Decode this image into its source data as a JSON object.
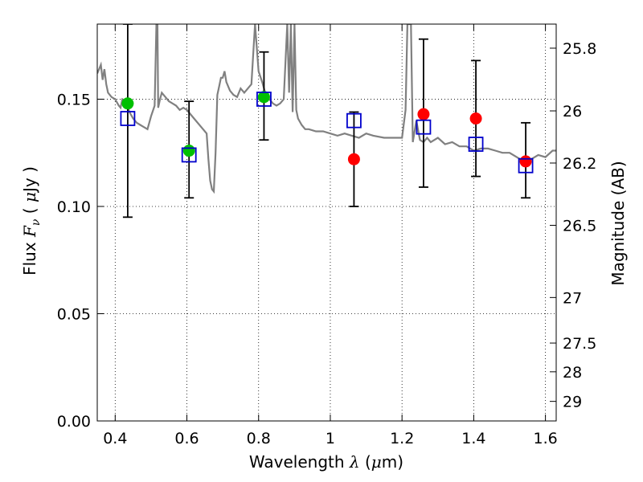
{
  "chart_data": {
    "type": "scatter",
    "xlabel_prefix": "Wavelength",
    "xlabel_symbol": "λ",
    "xlabel_unit_open": "(",
    "xlabel_unit_mu": "μ",
    "xlabel_unit_rest": "m)",
    "ylabel_prefix": "Flux",
    "ylabel_symbol": "F",
    "ylabel_subscript": "ν",
    "ylabel_unit_open": "(",
    "ylabel_unit_mu": "μ",
    "ylabel_unit_rest": "Jy )",
    "y2label": "Magnitude (AB)",
    "xlim": [
      0.35,
      1.63
    ],
    "ylim": [
      0.0,
      0.185
    ],
    "grid": true,
    "x_ticks": [
      0.4,
      0.6,
      0.8,
      1.0,
      1.2,
      1.4,
      1.6
    ],
    "x_tick_labels": [
      "0.4",
      "0.6",
      "0.8",
      "1",
      "1.2",
      "1.4",
      "1.6"
    ],
    "y_ticks": [
      0.0,
      0.05,
      0.1,
      0.15
    ],
    "y_tick_labels": [
      "0.00",
      "0.05",
      "0.10",
      "0.15"
    ],
    "mag_ticks": [
      25.8,
      26,
      26.2,
      26.5,
      27,
      27.5,
      28,
      29
    ],
    "mag_tick_labels": [
      "25.8",
      "26",
      "26.2",
      "26.5",
      "27",
      "27.5",
      "28",
      "29"
    ],
    "colors": {
      "spectrum": "#808080",
      "observed_green": "#00c000",
      "observed_red": "#ff0000",
      "model_box": "#0000cc",
      "errorbar": "#000000",
      "grid": "#000000"
    },
    "spectrum": {
      "name": "model SED",
      "x": [
        0.35,
        0.36,
        0.365,
        0.37,
        0.375,
        0.38,
        0.39,
        0.4,
        0.41,
        0.415,
        0.42,
        0.43,
        0.44,
        0.45,
        0.46,
        0.47,
        0.48,
        0.49,
        0.5,
        0.51,
        0.515,
        0.518,
        0.52,
        0.525,
        0.53,
        0.54,
        0.55,
        0.56,
        0.57,
        0.58,
        0.59,
        0.6,
        0.62,
        0.64,
        0.655,
        0.66,
        0.665,
        0.67,
        0.675,
        0.68,
        0.685,
        0.69,
        0.695,
        0.7,
        0.705,
        0.71,
        0.72,
        0.73,
        0.74,
        0.75,
        0.76,
        0.77,
        0.78,
        0.79,
        0.8,
        0.81,
        0.82,
        0.83,
        0.84,
        0.85,
        0.86,
        0.87,
        0.88,
        0.885,
        0.89,
        0.895,
        0.9,
        0.905,
        0.91,
        0.92,
        0.93,
        0.94,
        0.96,
        0.98,
        1.0,
        1.02,
        1.04,
        1.06,
        1.08,
        1.1,
        1.12,
        1.15,
        1.18,
        1.2,
        1.21,
        1.215,
        1.22,
        1.225,
        1.23,
        1.24,
        1.25,
        1.26,
        1.27,
        1.28,
        1.3,
        1.32,
        1.34,
        1.36,
        1.38,
        1.4,
        1.42,
        1.44,
        1.46,
        1.48,
        1.5,
        1.52,
        1.54,
        1.56,
        1.58,
        1.6,
        1.62,
        1.63
      ],
      "y": [
        0.162,
        0.166,
        0.159,
        0.164,
        0.157,
        0.153,
        0.151,
        0.15,
        0.147,
        0.146,
        0.15,
        0.149,
        0.144,
        0.141,
        0.139,
        0.138,
        0.137,
        0.136,
        0.142,
        0.147,
        0.185,
        0.185,
        0.146,
        0.15,
        0.153,
        0.151,
        0.149,
        0.148,
        0.147,
        0.145,
        0.146,
        0.145,
        0.141,
        0.137,
        0.134,
        0.122,
        0.112,
        0.108,
        0.107,
        0.125,
        0.152,
        0.156,
        0.16,
        0.16,
        0.163,
        0.158,
        0.154,
        0.152,
        0.151,
        0.155,
        0.153,
        0.155,
        0.157,
        0.185,
        0.163,
        0.158,
        0.152,
        0.15,
        0.148,
        0.147,
        0.148,
        0.15,
        0.185,
        0.153,
        0.185,
        0.144,
        0.185,
        0.145,
        0.141,
        0.138,
        0.136,
        0.136,
        0.135,
        0.135,
        0.134,
        0.133,
        0.134,
        0.133,
        0.132,
        0.134,
        0.133,
        0.132,
        0.132,
        0.132,
        0.145,
        0.185,
        0.185,
        0.185,
        0.13,
        0.14,
        0.131,
        0.13,
        0.132,
        0.13,
        0.132,
        0.129,
        0.13,
        0.128,
        0.128,
        0.126,
        0.127,
        0.127,
        0.126,
        0.125,
        0.125,
        0.123,
        0.121,
        0.122,
        0.124,
        0.123,
        0.126,
        0.126
      ]
    },
    "observed": [
      {
        "x": 0.435,
        "y": 0.148,
        "yerr_low": 0.095,
        "yerr_high": 0.185,
        "color": "green"
      },
      {
        "x": 0.606,
        "y": 0.126,
        "yerr_low": 0.104,
        "yerr_high": 0.149,
        "color": "green"
      },
      {
        "x": 0.815,
        "y": 0.151,
        "yerr_low": 0.131,
        "yerr_high": 0.172,
        "color": "green"
      },
      {
        "x": 1.066,
        "y": 0.122,
        "yerr_low": 0.1,
        "yerr_high": 0.144,
        "color": "red"
      },
      {
        "x": 1.26,
        "y": 0.143,
        "yerr_low": 0.109,
        "yerr_high": 0.178,
        "color": "red"
      },
      {
        "x": 1.406,
        "y": 0.141,
        "yerr_low": 0.114,
        "yerr_high": 0.168,
        "color": "red"
      },
      {
        "x": 1.545,
        "y": 0.121,
        "yerr_low": 0.104,
        "yerr_high": 0.139,
        "color": "red"
      }
    ],
    "model": [
      {
        "x": 0.435,
        "y": 0.141
      },
      {
        "x": 0.606,
        "y": 0.124
      },
      {
        "x": 0.815,
        "y": 0.15
      },
      {
        "x": 1.066,
        "y": 0.14
      },
      {
        "x": 1.26,
        "y": 0.137
      },
      {
        "x": 1.406,
        "y": 0.129
      },
      {
        "x": 1.545,
        "y": 0.119
      }
    ]
  }
}
